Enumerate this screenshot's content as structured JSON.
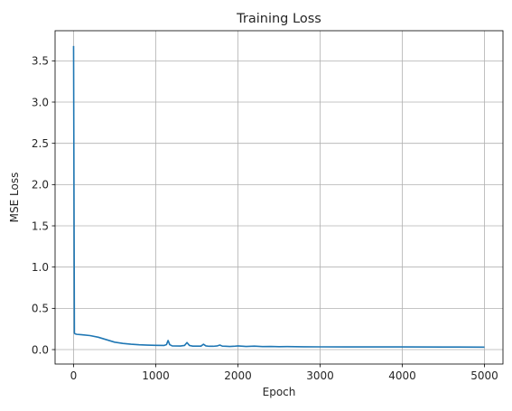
{
  "chart_data": {
    "type": "line",
    "title": "Training Loss",
    "xlabel": "Epoch",
    "ylabel": "MSE Loss",
    "xlim": [
      -225,
      5225
    ],
    "ylim": [
      -0.175,
      3.865
    ],
    "xticks": [
      0,
      1000,
      2000,
      3000,
      4000,
      5000
    ],
    "yticks": [
      0.0,
      0.5,
      1.0,
      1.5,
      2.0,
      2.5,
      3.0,
      3.5
    ],
    "xtick_labels": [
      "0",
      "1000",
      "2000",
      "3000",
      "4000",
      "5000"
    ],
    "ytick_labels": [
      "0.0",
      "0.5",
      "1.0",
      "1.5",
      "2.0",
      "2.5",
      "3.0",
      "3.5"
    ],
    "grid": true,
    "line_color": "#1f77b4",
    "series": [
      {
        "x": [
          0,
          10,
          20,
          40,
          100,
          200,
          300,
          400,
          500,
          600,
          700,
          800,
          900,
          1000,
          1100,
          1130,
          1150,
          1170,
          1200,
          1300,
          1350,
          1380,
          1410,
          1450,
          1550,
          1580,
          1610,
          1650,
          1700,
          1750,
          1780,
          1810,
          1850,
          1900,
          1950,
          2000,
          2100,
          2200,
          2300,
          2400,
          2500,
          2600,
          2700,
          2800,
          3000,
          3500,
          4000,
          4500,
          5000
        ],
        "y": [
          3.68,
          0.2,
          0.19,
          0.185,
          0.18,
          0.17,
          0.15,
          0.12,
          0.09,
          0.075,
          0.065,
          0.058,
          0.054,
          0.052,
          0.05,
          0.06,
          0.11,
          0.06,
          0.045,
          0.043,
          0.05,
          0.085,
          0.05,
          0.042,
          0.042,
          0.065,
          0.045,
          0.04,
          0.04,
          0.045,
          0.055,
          0.042,
          0.04,
          0.038,
          0.04,
          0.045,
          0.038,
          0.042,
          0.036,
          0.038,
          0.035,
          0.036,
          0.035,
          0.034,
          0.033,
          0.032,
          0.032,
          0.031,
          0.03
        ]
      }
    ]
  }
}
